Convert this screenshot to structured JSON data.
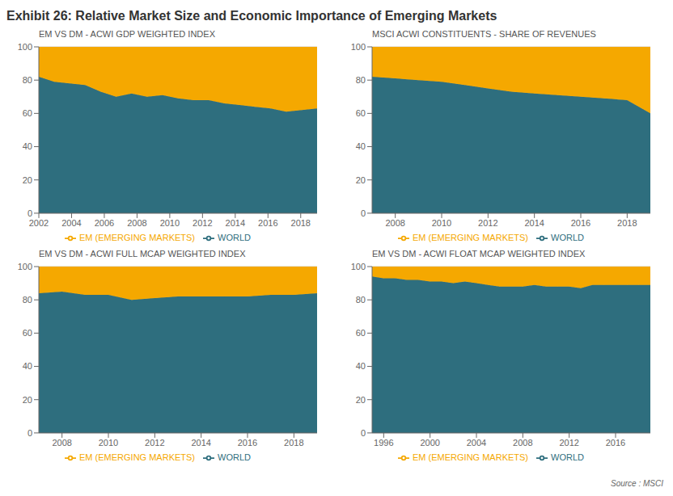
{
  "title": "Exhibit 26: Relative Market Size and Economic Importance of Emerging Markets",
  "annotation": "Source : MSCI",
  "chart_data": [
    {
      "type": "area",
      "stacked": true,
      "subtitle": "EM VS DM - ACWI GDP WEIGHTED INDEX",
      "x": [
        2002,
        2002.9444,
        2003.8889,
        2004.8333,
        2005.7778,
        2006.7222,
        2007.6667,
        2008.6111,
        2009.5556,
        2010.5,
        2011.4444,
        2012.3889,
        2013.3333,
        2014.2778,
        2015.2222,
        2016.1667,
        2017.1111,
        2018.0556,
        2019
      ],
      "series": [
        {
          "name": "WORLD",
          "color": "#2e6e7e",
          "values": [
            82,
            79,
            78,
            77,
            73,
            70,
            72,
            70,
            71,
            69,
            68,
            68,
            66,
            65,
            64,
            63,
            61,
            62,
            63
          ]
        },
        {
          "name": "EM (EMERGING MARKETS)",
          "color": "#f5a800",
          "values": [
            18,
            21,
            22,
            23,
            27,
            30,
            28,
            30,
            29,
            31,
            32,
            32,
            34,
            35,
            36,
            37,
            39,
            38,
            37
          ]
        }
      ],
      "xlim": [
        2002,
        2019
      ],
      "xticks": [
        2002,
        2004,
        2006,
        2008,
        2010,
        2012,
        2014,
        2016,
        2018
      ],
      "ylim": [
        0,
        100
      ],
      "yticks": [
        0,
        20,
        40,
        60,
        80,
        100
      ],
      "grid": true,
      "legend": "bottom"
    },
    {
      "type": "area",
      "stacked": true,
      "subtitle": "MSCI ACWI CONSTITUENTS - SHARE OF REVENUES",
      "x": [
        2007,
        2008,
        2009,
        2010,
        2011,
        2012,
        2013,
        2014,
        2015,
        2016,
        2017,
        2018,
        2019
      ],
      "series": [
        {
          "name": "WORLD",
          "color": "#2e6e7e",
          "values": [
            82,
            81,
            80,
            79,
            77,
            75,
            73,
            72,
            71,
            70,
            69,
            68,
            60
          ]
        },
        {
          "name": "EM (EMERGING MARKETS)",
          "color": "#f5a800",
          "values": [
            18,
            19,
            20,
            21,
            23,
            25,
            27,
            28,
            29,
            30,
            31,
            32,
            40
          ]
        }
      ],
      "xlim": [
        2007,
        2019
      ],
      "xticks": [
        2008,
        2010,
        2012,
        2014,
        2016,
        2018
      ],
      "ylim": [
        0,
        100
      ],
      "yticks": [
        0,
        20,
        40,
        60,
        80,
        100
      ],
      "grid": true,
      "legend": "bottom"
    },
    {
      "type": "area",
      "stacked": true,
      "subtitle": "EM VS DM - ACWI FULL MCAP WEIGHTED INDEX",
      "x": [
        2007,
        2008,
        2009,
        2010,
        2011,
        2012,
        2013,
        2014,
        2015,
        2016,
        2017,
        2018,
        2019
      ],
      "series": [
        {
          "name": "WORLD",
          "color": "#2e6e7e",
          "values": [
            84,
            85,
            83,
            83,
            80,
            81,
            82,
            82,
            82,
            82,
            83,
            83,
            84
          ]
        },
        {
          "name": "EM (EMERGING MARKETS)",
          "color": "#f5a800",
          "values": [
            16,
            15,
            17,
            17,
            20,
            19,
            18,
            18,
            18,
            18,
            17,
            17,
            16
          ]
        }
      ],
      "xlim": [
        2007,
        2019
      ],
      "xticks": [
        2008,
        2010,
        2012,
        2014,
        2016,
        2018
      ],
      "ylim": [
        0,
        100
      ],
      "yticks": [
        0,
        20,
        40,
        60,
        80,
        100
      ],
      "grid": true,
      "legend": "bottom"
    },
    {
      "type": "area",
      "stacked": true,
      "subtitle": "EM VS DM - ACWI FLOAT MCAP WEIGHTED INDEX",
      "x": [
        1995,
        1996,
        1997,
        1998,
        1999,
        2000,
        2001,
        2002,
        2003,
        2004,
        2005,
        2006,
        2007,
        2008,
        2009,
        2010,
        2011,
        2012,
        2013,
        2014,
        2015,
        2016,
        2017,
        2018,
        2019
      ],
      "series": [
        {
          "name": "WORLD",
          "color": "#2e6e7e",
          "values": [
            94,
            93,
            93,
            92,
            92,
            91,
            91,
            90,
            91,
            90,
            89,
            88,
            88,
            88,
            89,
            88,
            88,
            88,
            87,
            89,
            89,
            89,
            89,
            89,
            89
          ]
        },
        {
          "name": "EM (EMERGING MARKETS)",
          "color": "#f5a800",
          "values": [
            6,
            7,
            7,
            8,
            8,
            9,
            9,
            10,
            9,
            10,
            11,
            12,
            12,
            12,
            11,
            12,
            12,
            12,
            13,
            11,
            11,
            11,
            11,
            11,
            11
          ]
        }
      ],
      "xlim": [
        1995,
        2019
      ],
      "xticks": [
        1996,
        2000,
        2004,
        2008,
        2012,
        2016
      ],
      "ylim": [
        0,
        100
      ],
      "yticks": [
        0,
        20,
        40,
        60,
        80,
        100
      ],
      "grid": true,
      "legend": "bottom"
    }
  ]
}
